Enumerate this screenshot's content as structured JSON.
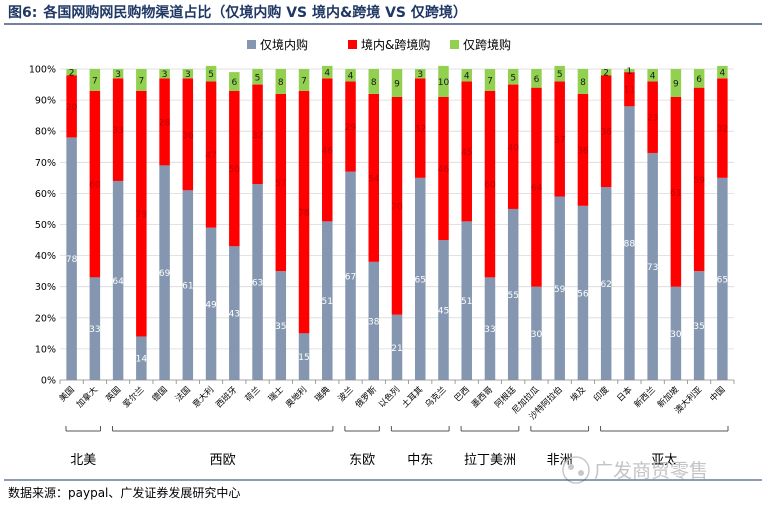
{
  "figure_label": "图6:",
  "title": "各国网购网民购物渠道占比（仅境内购 VS 境内&跨境 VS 仅跨境）",
  "source": "数据来源：paypal、广发证券发展研究中心",
  "watermark": "广发商贸零售",
  "colors": {
    "domestic": "#8496b0",
    "both": "#ff0000",
    "cross": "#92d050",
    "title": "#1f3864"
  },
  "chart_data": {
    "type": "bar",
    "stacked": true,
    "categories": [
      "美国",
      "加拿大",
      "英国",
      "爱尔兰",
      "德国",
      "法国",
      "意大利",
      "西班牙",
      "荷兰",
      "瑞士",
      "奥地利",
      "瑞典",
      "波兰",
      "俄罗斯",
      "以色列",
      "土耳其",
      "乌克兰",
      "巴西",
      "墨西哥",
      "阿根廷",
      "尼加拉瓜",
      "沙特阿拉伯",
      "埃及",
      "印度",
      "日本",
      "新西兰",
      "新加坡",
      "澳大利亚",
      "中国"
    ],
    "series": [
      {
        "name": "仅境内购",
        "values": [
          78,
          33,
          64,
          14,
          69,
          61,
          49,
          43,
          63,
          35,
          15,
          51,
          67,
          38,
          21,
          65,
          45,
          51,
          33,
          55,
          30,
          59,
          56,
          62,
          88,
          73,
          30,
          35,
          65
        ]
      },
      {
        "name": "境内&跨境购",
        "values": [
          20,
          60,
          33,
          79,
          28,
          36,
          47,
          50,
          32,
          57,
          78,
          46,
          29,
          54,
          70,
          32,
          46,
          45,
          60,
          40,
          64,
          37,
          36,
          36,
          11,
          23,
          61,
          59,
          32
        ]
      },
      {
        "name": "仅跨境购",
        "values": [
          2,
          7,
          3,
          7,
          3,
          3,
          5,
          6,
          5,
          8,
          7,
          4,
          4,
          8,
          9,
          3,
          10,
          4,
          7,
          5,
          6,
          5,
          8,
          2,
          1,
          4,
          9,
          6,
          4
        ]
      }
    ],
    "ylim": [
      0,
      100
    ],
    "yticks": [
      "0%",
      "10%",
      "20%",
      "30%",
      "40%",
      "50%",
      "60%",
      "70%",
      "80%",
      "90%",
      "100%"
    ],
    "legend_position": "top",
    "groups": [
      {
        "name": "北美",
        "range": [
          0,
          1
        ]
      },
      {
        "name": "西欧",
        "range": [
          2,
          11
        ]
      },
      {
        "name": "东欧",
        "range": [
          12,
          13
        ]
      },
      {
        "name": "中东",
        "range": [
          14,
          16
        ]
      },
      {
        "name": "拉丁美洲",
        "range": [
          17,
          19
        ]
      },
      {
        "name": "非洲",
        "range": [
          20,
          22
        ]
      },
      {
        "name": "亚太",
        "range": [
          23,
          28
        ]
      }
    ]
  }
}
